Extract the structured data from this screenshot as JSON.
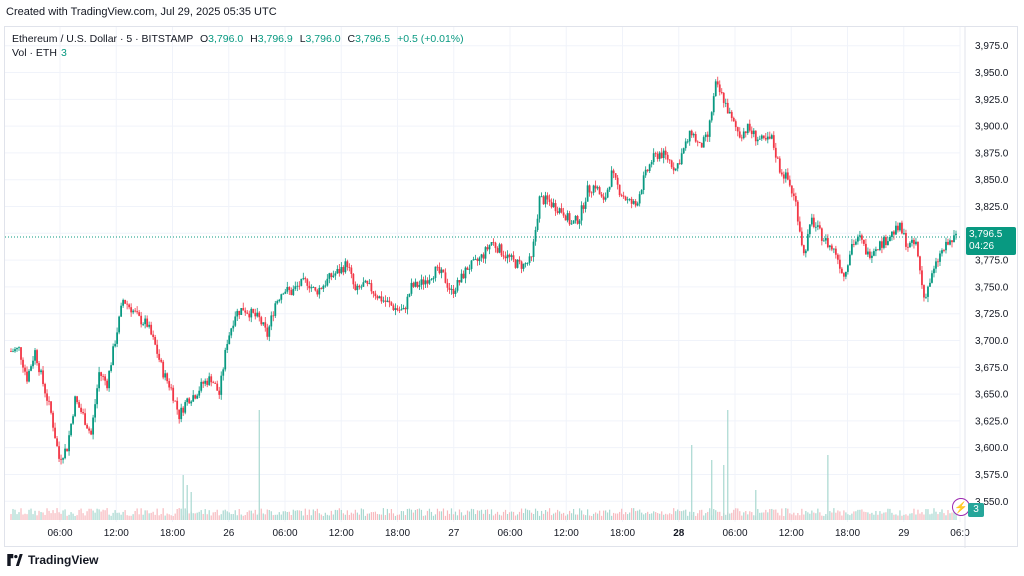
{
  "header": {
    "created": "Created with TradingView.com, Jul 29, 2025 05:35 UTC"
  },
  "legend": {
    "symbol": "Ethereum / U.S. Dollar · 5 · BITSTAMP",
    "o_label": "O",
    "o_value": "3,796.0",
    "h_label": "H",
    "h_value": "3,796.9",
    "l_label": "L",
    "l_value": "3,796.0",
    "c_label": "C",
    "c_value": "3,796.5",
    "change": "+0.5 (+0.01%)",
    "vol_label": "Vol · ETH",
    "vol_value": "3"
  },
  "price_tag": {
    "price": "3,796.5",
    "countdown": "04:26"
  },
  "vol_badge": "3",
  "footer": {
    "brand": "TradingView"
  },
  "colors": {
    "up": "#089981",
    "down": "#f23645",
    "vol_up": "#a8d8d0",
    "vol_down": "#f7b9be",
    "last_line": "#089981",
    "grid": "#f0f3fa"
  },
  "chart_data": {
    "type": "candlestick",
    "ylim": [
      3540,
      3985
    ],
    "y_ticks": [
      "3,975.0",
      "3,950.0",
      "3,925.0",
      "3,900.0",
      "3,875.0",
      "3,850.0",
      "3,825.0",
      "3,800.0",
      "3,775.0",
      "3,750.0",
      "3,725.0",
      "3,700.0",
      "3,675.0",
      "3,650.0",
      "3,625.0",
      "3,600.0",
      "3,575.0",
      "3,550.0"
    ],
    "x_ticks": [
      "06:00",
      "12:00",
      "18:00",
      "26",
      "06:00",
      "12:00",
      "18:00",
      "27",
      "06:00",
      "12:00",
      "18:00",
      "28",
      "06:00",
      "12:00",
      "18:00",
      "29",
      "06:0"
    ],
    "last_price": 3796.5,
    "close_path": [
      [
        0,
        3690
      ],
      [
        4,
        3692
      ],
      [
        8,
        3665
      ],
      [
        12,
        3690
      ],
      [
        16,
        3660
      ],
      [
        20,
        3632
      ],
      [
        24,
        3590
      ],
      [
        28,
        3600
      ],
      [
        32,
        3645
      ],
      [
        36,
        3630
      ],
      [
        40,
        3612
      ],
      [
        44,
        3670
      ],
      [
        48,
        3660
      ],
      [
        52,
        3700
      ],
      [
        56,
        3738
      ],
      [
        60,
        3730
      ],
      [
        64,
        3720
      ],
      [
        68,
        3715
      ],
      [
        72,
        3695
      ],
      [
        76,
        3670
      ],
      [
        80,
        3655
      ],
      [
        84,
        3630
      ],
      [
        88,
        3645
      ],
      [
        92,
        3650
      ],
      [
        96,
        3660
      ],
      [
        100,
        3665
      ],
      [
        104,
        3650
      ],
      [
        108,
        3700
      ],
      [
        112,
        3725
      ],
      [
        116,
        3730
      ],
      [
        120,
        3725
      ],
      [
        124,
        3720
      ],
      [
        128,
        3705
      ],
      [
        132,
        3735
      ],
      [
        136,
        3748
      ],
      [
        140,
        3745
      ],
      [
        144,
        3752
      ],
      [
        148,
        3755
      ],
      [
        152,
        3745
      ],
      [
        156,
        3752
      ],
      [
        160,
        3760
      ],
      [
        164,
        3765
      ],
      [
        168,
        3772
      ],
      [
        172,
        3745
      ],
      [
        176,
        3752
      ],
      [
        180,
        3748
      ],
      [
        184,
        3740
      ],
      [
        188,
        3735
      ],
      [
        192,
        3730
      ],
      [
        196,
        3727
      ],
      [
        200,
        3750
      ],
      [
        204,
        3752
      ],
      [
        208,
        3758
      ],
      [
        212,
        3765
      ],
      [
        216,
        3760
      ],
      [
        220,
        3745
      ],
      [
        224,
        3755
      ],
      [
        228,
        3768
      ],
      [
        232,
        3772
      ],
      [
        236,
        3780
      ],
      [
        240,
        3792
      ],
      [
        244,
        3785
      ],
      [
        248,
        3778
      ],
      [
        252,
        3772
      ],
      [
        256,
        3770
      ],
      [
        260,
        3775
      ],
      [
        264,
        3832
      ],
      [
        268,
        3830
      ],
      [
        272,
        3825
      ],
      [
        276,
        3820
      ],
      [
        280,
        3808
      ],
      [
        284,
        3815
      ],
      [
        288,
        3840
      ],
      [
        292,
        3845
      ],
      [
        296,
        3828
      ],
      [
        300,
        3855
      ],
      [
        304,
        3840
      ],
      [
        308,
        3830
      ],
      [
        312,
        3826
      ],
      [
        316,
        3850
      ],
      [
        320,
        3868
      ],
      [
        324,
        3875
      ],
      [
        328,
        3870
      ],
      [
        332,
        3860
      ],
      [
        336,
        3878
      ],
      [
        340,
        3895
      ],
      [
        344,
        3880
      ],
      [
        348,
        3890
      ],
      [
        352,
        3938
      ],
      [
        356,
        3925
      ],
      [
        360,
        3905
      ],
      [
        364,
        3892
      ],
      [
        368,
        3898
      ],
      [
        372,
        3890
      ],
      [
        376,
        3885
      ],
      [
        380,
        3888
      ],
      [
        384,
        3860
      ],
      [
        388,
        3850
      ],
      [
        392,
        3828
      ],
      [
        396,
        3780
      ],
      [
        400,
        3812
      ],
      [
        404,
        3800
      ],
      [
        408,
        3790
      ],
      [
        412,
        3782
      ],
      [
        416,
        3760
      ],
      [
        420,
        3790
      ],
      [
        424,
        3795
      ],
      [
        428,
        3780
      ],
      [
        432,
        3788
      ],
      [
        436,
        3792
      ],
      [
        440,
        3800
      ],
      [
        444,
        3805
      ],
      [
        448,
        3788
      ],
      [
        452,
        3790
      ],
      [
        456,
        3740
      ],
      [
        460,
        3760
      ],
      [
        464,
        3780
      ],
      [
        468,
        3790
      ],
      [
        472,
        3796.5
      ]
    ],
    "volume_spikes": [
      [
        86,
        45
      ],
      [
        88,
        35
      ],
      [
        90,
        28
      ],
      [
        124,
        110
      ],
      [
        340,
        75
      ],
      [
        350,
        60
      ],
      [
        356,
        55
      ],
      [
        358,
        110
      ],
      [
        372,
        30
      ],
      [
        408,
        65
      ]
    ]
  }
}
